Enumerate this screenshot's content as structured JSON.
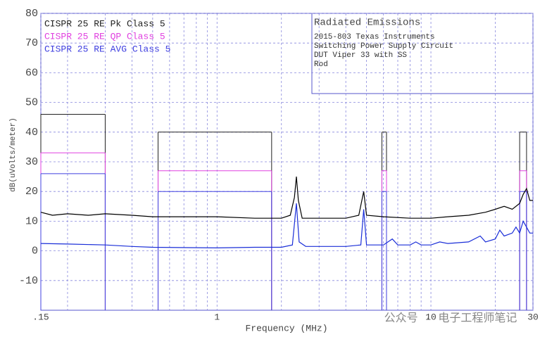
{
  "chart_data": {
    "type": "line",
    "xscale": "log",
    "grid": true,
    "xlabel": "Frequency (MHz)",
    "ylabel": "dB(uVolts/meter)",
    "xlim": [
      0.15,
      30
    ],
    "ylim": [
      -20,
      80
    ],
    "xticks": [
      {
        "value": 0.15,
        "label": ".15"
      },
      1,
      10,
      30
    ],
    "xminorticks": [
      0.2,
      0.3,
      0.4,
      0.5,
      0.6,
      0.7,
      0.8,
      0.9,
      2,
      3,
      4,
      5,
      6,
      7,
      8,
      9,
      20
    ],
    "yticks": [
      -10,
      0,
      10,
      20,
      30,
      40,
      50,
      60,
      70,
      80
    ],
    "annotation": {
      "title": "Radiated Emissions",
      "lines": [
        "2015-803 Texas Instruments",
        "Switching Power Supply Circuit",
        "DUT Viper 33 with SS",
        "Rod"
      ]
    },
    "watermark": "公众号 · 电子工程师笔记",
    "series": [
      {
        "name": "CISPR 25 RE Pk Class 5",
        "color": "#222222",
        "limit": true,
        "x": [
          0.15,
          0.3,
          null,
          0.53,
          1.8,
          null,
          5.9,
          6.2,
          null,
          26,
          28
        ],
        "values": [
          46,
          46,
          null,
          40,
          40,
          null,
          40,
          40,
          null,
          40,
          40
        ]
      },
      {
        "name": "CISPR 25 RE QP Class 5",
        "color": "#e040e0",
        "limit": true,
        "x": [
          0.15,
          0.3,
          null,
          0.53,
          1.8,
          null,
          5.9,
          6.2,
          null,
          26,
          28
        ],
        "values": [
          33,
          33,
          null,
          27,
          27,
          null,
          27,
          27,
          null,
          27,
          27
        ]
      },
      {
        "name": "CISPR 25 RE AVG Class 5",
        "color": "#4040e0",
        "limit": true,
        "x": [
          0.15,
          0.3,
          null,
          0.53,
          1.8,
          null,
          5.9,
          6.2,
          null,
          26,
          28
        ],
        "values": [
          26,
          26,
          null,
          20,
          20,
          null,
          20,
          20,
          null,
          20,
          20
        ]
      },
      {
        "color": "#000000",
        "x": [
          0.15,
          0.17,
          0.2,
          0.25,
          0.3,
          0.4,
          0.5,
          0.7,
          1,
          1.5,
          2,
          2.2,
          2.3,
          2.35,
          2.4,
          2.5,
          3,
          4,
          4.6,
          4.85,
          5.0,
          6,
          8,
          10,
          12,
          15,
          18,
          20,
          22,
          24,
          26,
          27,
          28,
          29,
          30
        ],
        "values": [
          13,
          12,
          12.5,
          12,
          12.5,
          12,
          11.5,
          11.5,
          11.5,
          11,
          11,
          12,
          18,
          25,
          17,
          11,
          11,
          11,
          12,
          20,
          12,
          11.5,
          11,
          11,
          11.5,
          12,
          13,
          14,
          15,
          14,
          16,
          19,
          21,
          17,
          17
        ]
      },
      {
        "color": "#1a2ed8",
        "x": [
          0.15,
          0.2,
          0.3,
          0.4,
          0.5,
          1,
          1.5,
          2,
          2.25,
          2.35,
          2.42,
          2.6,
          4,
          4.7,
          4.85,
          5.0,
          6,
          6.6,
          7,
          8,
          8.5,
          9,
          10,
          11,
          12,
          15,
          17,
          18,
          20,
          21,
          22,
          24,
          25,
          26,
          27,
          28,
          29,
          30
        ],
        "values": [
          2.5,
          2.3,
          2,
          1.5,
          1.2,
          1,
          1.2,
          1.2,
          2,
          16,
          3,
          1.5,
          1.5,
          2,
          14,
          2,
          2,
          4,
          2,
          2,
          3,
          2,
          2,
          3,
          2.5,
          3,
          5,
          3,
          4,
          7,
          5,
          6,
          8,
          6,
          10,
          8,
          6,
          6
        ]
      }
    ]
  }
}
